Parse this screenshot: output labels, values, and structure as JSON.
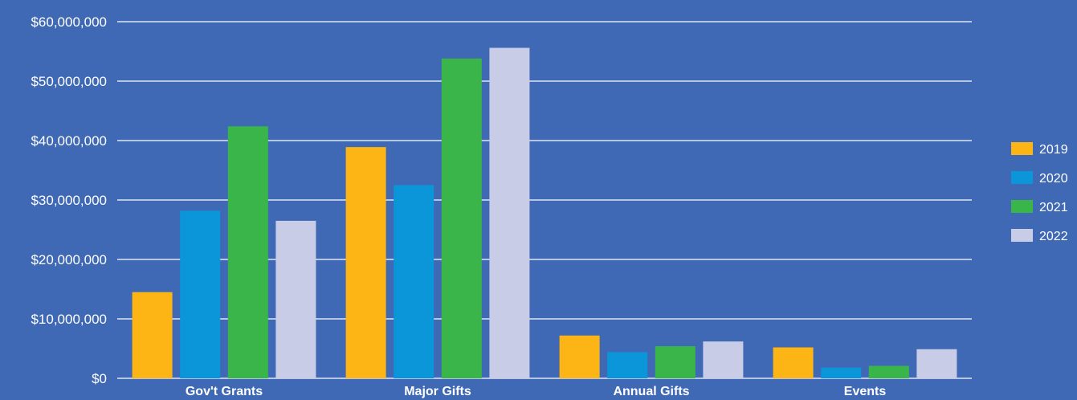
{
  "chart_data": {
    "type": "bar",
    "title": "",
    "xlabel": "",
    "ylabel": "",
    "categories": [
      "Gov't Grants",
      "Major Gifts",
      "Annual Gifts",
      "Events"
    ],
    "series": [
      {
        "name": "2019",
        "color": "#FDB515",
        "values": [
          14500000,
          38900000,
          7200000,
          5200000
        ]
      },
      {
        "name": "2020",
        "color": "#0B96DA",
        "values": [
          28200000,
          32500000,
          4400000,
          1800000
        ]
      },
      {
        "name": "2021",
        "color": "#39B54A",
        "values": [
          42400000,
          53800000,
          5400000,
          2100000
        ]
      },
      {
        "name": "2022",
        "color": "#C9CCE6",
        "values": [
          26500000,
          55600000,
          6200000,
          4900000
        ]
      }
    ],
    "yticks": [
      0,
      10000000,
      20000000,
      30000000,
      40000000,
      50000000,
      60000000
    ],
    "ytick_labels": [
      "$0",
      "$10,000,000",
      "$20,000,000",
      "$30,000,000",
      "$40,000,000",
      "$50,000,000",
      "$60,000,000"
    ],
    "ylim": [
      0,
      60000000
    ],
    "grid": true,
    "legend": "right",
    "background": "#3F69B5",
    "text_color": "#FFFFFF"
  }
}
